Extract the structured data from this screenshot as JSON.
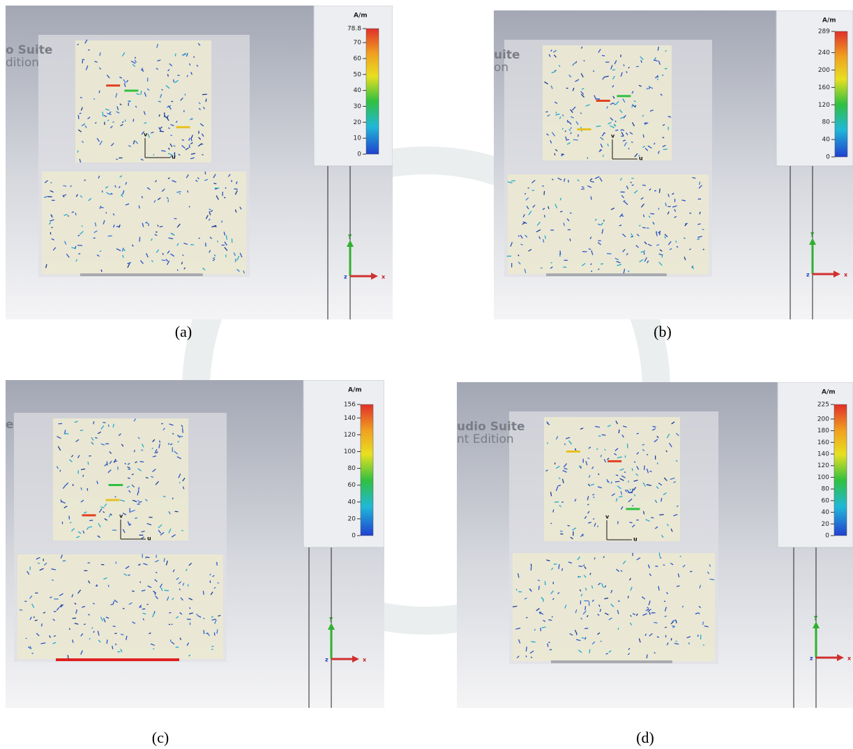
{
  "panels": [
    {
      "label": "(a)",
      "unit": "A/m",
      "colorbar_max": 78.8,
      "colorbar_ticks": [
        70,
        60,
        50,
        40,
        30,
        20,
        10,
        0
      ],
      "axis_labels": [
        "v",
        "u",
        "y",
        "x",
        "z"
      ],
      "watermark_text": [
        "o Suite",
        "dition"
      ]
    },
    {
      "label": "(b)",
      "unit": "A/m",
      "colorbar_max": 289,
      "colorbar_ticks": [
        240,
        200,
        160,
        120,
        80,
        40,
        0
      ],
      "axis_labels": [
        "v",
        "u",
        "y",
        "x",
        "z"
      ],
      "watermark_text": [
        "uite",
        "on"
      ]
    },
    {
      "label": "(c)",
      "unit": "A/m",
      "colorbar_max": 156,
      "colorbar_ticks": [
        140,
        120,
        100,
        80,
        60,
        40,
        20,
        0
      ],
      "axis_labels": [
        "v",
        "u",
        "y",
        "x",
        "z"
      ],
      "watermark_text": [
        "e"
      ]
    },
    {
      "label": "(d)",
      "unit": "A/m",
      "colorbar_max": 225,
      "colorbar_ticks": [
        200,
        180,
        160,
        140,
        120,
        100,
        80,
        60,
        40,
        20,
        0
      ],
      "axis_labels": [
        "v",
        "u",
        "y",
        "x",
        "z"
      ],
      "watermark_text": [
        "udio Suite",
        "nt Edition"
      ]
    }
  ]
}
